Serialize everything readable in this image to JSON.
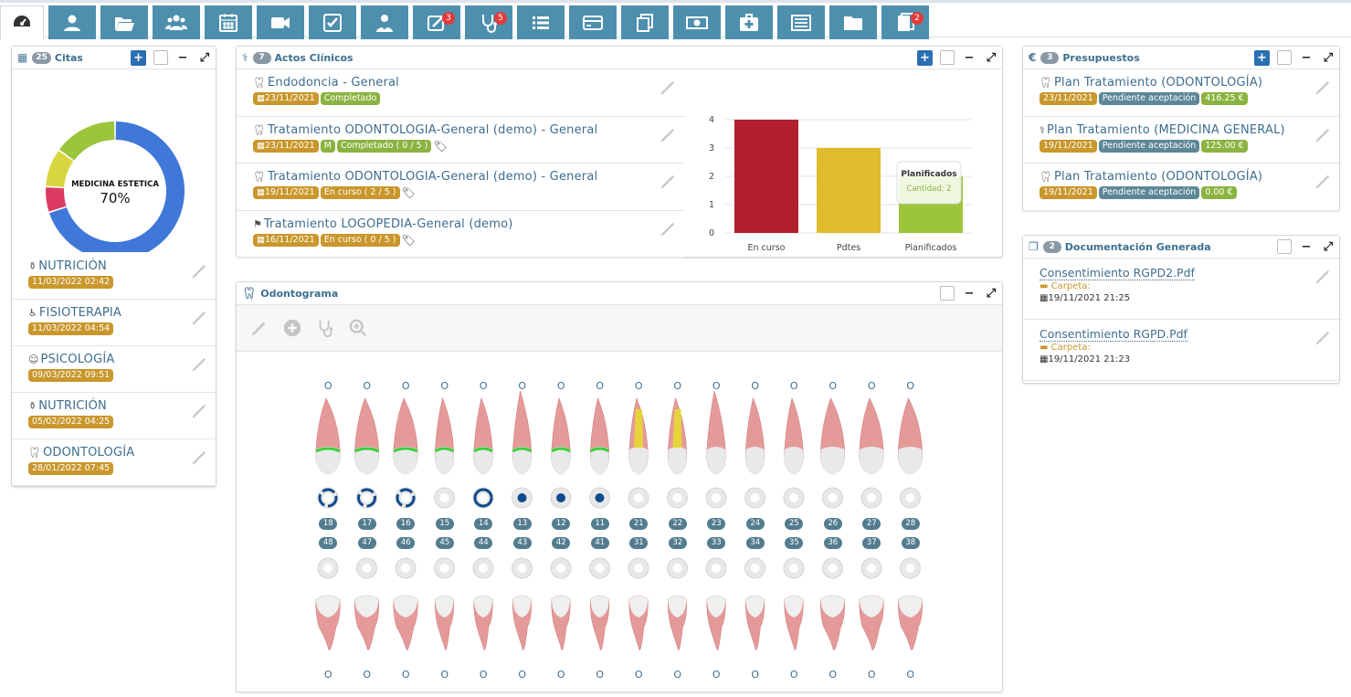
{
  "colors": {
    "accent": "#4e8fae",
    "primary_btn": "#2b6fb3",
    "gold": "#c9972c",
    "green": "#8bb340",
    "teal": "#5d8797",
    "badge": "#e03b3b"
  },
  "toolbar": {
    "tabs": [
      {
        "icon": "dashboard-icon",
        "active": true
      },
      {
        "icon": "user-icon"
      },
      {
        "icon": "folder-open-icon"
      },
      {
        "icon": "users-icon"
      },
      {
        "icon": "calendar-icon"
      },
      {
        "icon": "video-icon"
      },
      {
        "icon": "check-square-icon"
      },
      {
        "icon": "doctor-icon"
      },
      {
        "icon": "prescription-icon",
        "badge": "3"
      },
      {
        "icon": "stethoscope-icon",
        "badge": "5"
      },
      {
        "icon": "list-icon"
      },
      {
        "icon": "credit-card-icon"
      },
      {
        "icon": "copy-icon"
      },
      {
        "icon": "money-icon"
      },
      {
        "icon": "medkit-icon"
      },
      {
        "icon": "table-list-icon"
      },
      {
        "icon": "folder-icon"
      },
      {
        "icon": "clipboard-icon",
        "badge": "2"
      }
    ]
  },
  "citas": {
    "count": "25",
    "title": "Citas",
    "donut": {
      "label": "MEDICINA ESTETICA",
      "percent": "70%",
      "slices": [
        {
          "value": 70,
          "color": "#3f78d8"
        },
        {
          "value": 6,
          "color": "#de3b62"
        },
        {
          "value": 9,
          "color": "#d8d63e"
        },
        {
          "value": 15,
          "color": "#9cc53b"
        }
      ]
    },
    "items": [
      {
        "icon": "nutrition-icon",
        "title": "NUTRICIÓN",
        "date": "11/03/2022 02:42"
      },
      {
        "icon": "physio-icon",
        "title": "FISIOTERAPIA",
        "date": "11/03/2022 04:54"
      },
      {
        "icon": "psychology-icon",
        "title": "PSICOLOGÍA",
        "date": "09/03/2022 09:51"
      },
      {
        "icon": "nutrition-icon",
        "title": "NUTRICIÓN",
        "date": "05/02/2022 04:25"
      },
      {
        "icon": "tooth-icon",
        "title": "ODONTOLOGÍA",
        "date": "28/01/2022 07:45"
      }
    ]
  },
  "actos": {
    "count": "7",
    "title": "Actos Clínicos",
    "items": [
      {
        "icon": "tooth-icon",
        "title": "Endodoncia - General",
        "date": "23/11/2021",
        "tags": [
          {
            "text": "Completado",
            "style": "t-green"
          }
        ],
        "taglabel": false
      },
      {
        "icon": "tooth-icon",
        "title": "Tratamiento ODONTOLOGIA-General (demo) - General",
        "date": "23/11/2021",
        "tags": [
          {
            "text": "M",
            "style": "t-green"
          },
          {
            "text": "Completado ( 0 / 5 )",
            "style": "t-green"
          }
        ],
        "taglabel": true
      },
      {
        "icon": "tooth-icon",
        "title": "Tratamiento ODONTOLOGIA-General (demo) - General",
        "date": "19/11/2021",
        "tags": [
          {
            "text": "En curso ( 2 / 5 )",
            "style": "t-gold"
          }
        ],
        "taglabel": true
      },
      {
        "icon": "speech-icon",
        "title": "Tratamiento LOGOPEDIA-General (demo)",
        "date": "16/11/2021",
        "tags": [
          {
            "text": "En curso ( 0 / 5 )",
            "style": "t-gold"
          }
        ],
        "taglabel": true
      }
    ]
  },
  "chart_data": {
    "type": "bar",
    "categories": [
      "En curso",
      "Pdtes",
      "Planificados"
    ],
    "values": [
      4,
      3,
      2
    ],
    "colors": [
      "#b21f2d",
      "#e0bb2b",
      "#9cc53b"
    ],
    "ylim": [
      0,
      4
    ],
    "yticks": [
      "0",
      "1",
      "2",
      "3",
      "4"
    ],
    "tooltip": {
      "title": "Planificados",
      "line": "Cantidad: 2"
    }
  },
  "odontograma": {
    "title": "Odontograma",
    "tools": [
      "pencil-icon",
      "plus-circle-icon",
      "stethoscope-icon",
      "zoom-in-icon"
    ],
    "zero": "O",
    "upper": [
      "18",
      "17",
      "16",
      "15",
      "14",
      "13",
      "12",
      "11",
      "21",
      "22",
      "23",
      "24",
      "25",
      "26",
      "27",
      "28"
    ],
    "lower": [
      "48",
      "47",
      "46",
      "45",
      "44",
      "43",
      "42",
      "41",
      "31",
      "32",
      "33",
      "34",
      "35",
      "36",
      "37",
      "38"
    ]
  },
  "presupuestos": {
    "count": "3",
    "title": "Presupuestos",
    "items": [
      {
        "icon": "tooth-icon",
        "title": "Plan Tratamiento (ODONTOLOGÍA)",
        "date": "23/11/2021",
        "status": "Pendiente aceptación",
        "amount": "416.25 €"
      },
      {
        "icon": "stethoscope-icon",
        "title": "Plan Tratamiento (MEDICINA GENERAL)",
        "date": "19/11/2021",
        "status": "Pendiente aceptación",
        "amount": "125.00 €"
      },
      {
        "icon": "tooth-icon",
        "title": "Plan Tratamiento (ODONTOLOGÍA)",
        "date": "19/11/2021",
        "status": "Pendiente aceptación",
        "amount": "0.00 €"
      }
    ]
  },
  "documentacion": {
    "count": "2",
    "title": "Documentación Generada",
    "items": [
      {
        "title": "Consentimiento RGPD2.Pdf",
        "folder": "Carpeta:",
        "date": "19/11/2021 21:25"
      },
      {
        "title": "Consentimiento RGPD.Pdf",
        "folder": "Carpeta:",
        "date": "19/11/2021 21:23"
      }
    ]
  }
}
